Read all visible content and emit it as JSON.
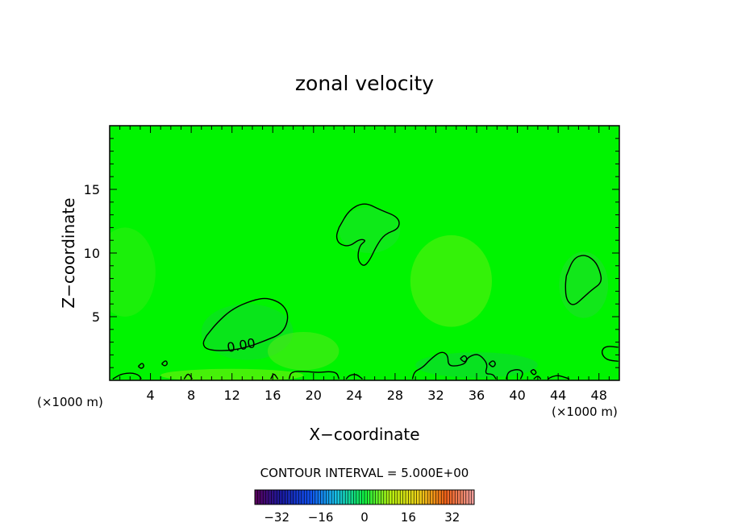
{
  "chart_data": {
    "type": "contour",
    "title": "zonal velocity",
    "xlabel": "X−coordinate",
    "ylabel": "Z−coordinate",
    "x_unit_left": "(×1000 m)",
    "x_unit_right": "(×1000 m)",
    "xlim": [
      0,
      50
    ],
    "ylim": [
      0,
      20
    ],
    "x_ticks": [
      4,
      8,
      12,
      16,
      20,
      24,
      28,
      32,
      36,
      40,
      44,
      48
    ],
    "x_tick_labels": [
      "4",
      "8",
      "12",
      "16",
      "20",
      "24",
      "28",
      "32",
      "36",
      "40",
      "44",
      "48"
    ],
    "y_ticks": [
      5,
      10,
      15
    ],
    "y_tick_labels": [
      "5",
      "10",
      "15"
    ],
    "contour_label": "0.00",
    "contour_interval_text": "CONTOUR INTERVAL = 5.000E+00",
    "colorbar": {
      "min": -40,
      "max": 40,
      "ticks": [
        -32,
        -16,
        0,
        16,
        32
      ],
      "tick_labels": [
        "−32",
        "−16",
        "0",
        "16",
        "32"
      ]
    },
    "field_color": "#00f400",
    "zero_contours": [
      [
        [
          9.5,
          3.5
        ],
        [
          10.5,
          4.5
        ],
        [
          12,
          5.6
        ],
        [
          14,
          6.3
        ],
        [
          15.5,
          6.5
        ],
        [
          17,
          6
        ],
        [
          17.6,
          5
        ],
        [
          17,
          3.7
        ],
        [
          15.2,
          3.1
        ],
        [
          13.5,
          2.6
        ],
        [
          11.5,
          2.3
        ],
        [
          9.5,
          2.4
        ],
        [
          9.1,
          2.9
        ],
        [
          9.5,
          3.5
        ]
      ],
      [
        [
          22.5,
          12
        ],
        [
          23.5,
          13.4
        ],
        [
          25,
          14
        ],
        [
          26.5,
          13.4
        ],
        [
          28.4,
          12.8
        ],
        [
          28.4,
          11.9
        ],
        [
          27,
          11.5
        ],
        [
          26.2,
          10.6
        ],
        [
          25.5,
          9.4
        ],
        [
          24.9,
          8.9
        ],
        [
          24.3,
          9.5
        ],
        [
          24.5,
          10.6
        ],
        [
          25.2,
          11
        ],
        [
          24.5,
          11.1
        ],
        [
          23.5,
          10.5
        ],
        [
          22.5,
          10.7
        ],
        [
          22.2,
          11.3
        ],
        [
          22.5,
          12
        ]
      ],
      [
        [
          44.8,
          8.2
        ],
        [
          45.5,
          9.6
        ],
        [
          46.6,
          9.9
        ],
        [
          47.6,
          9.4
        ],
        [
          48.1,
          8.6
        ],
        [
          48.3,
          7.7
        ],
        [
          47.3,
          7.1
        ],
        [
          46.6,
          6.6
        ],
        [
          45.5,
          5.8
        ],
        [
          44.8,
          6.3
        ],
        [
          44.7,
          7.4
        ],
        [
          44.8,
          8.2
        ]
      ],
      [
        [
          0.3,
          0.1
        ],
        [
          1.1,
          0.5
        ],
        [
          2.2,
          0.6
        ],
        [
          2.9,
          0.4
        ],
        [
          3.1,
          0.1
        ]
      ],
      [
        [
          7.3,
          0.1
        ],
        [
          7.7,
          0.6
        ],
        [
          8.1,
          0.1
        ]
      ],
      [
        [
          15.8,
          0.1
        ],
        [
          16.1,
          0.6
        ],
        [
          16.5,
          0.1
        ]
      ],
      [
        [
          17.6,
          0.1
        ],
        [
          17.8,
          0.7
        ],
        [
          19.2,
          0.7
        ],
        [
          20.5,
          0.6
        ],
        [
          21.5,
          0.7
        ],
        [
          22.3,
          0.6
        ],
        [
          22.5,
          0.1
        ]
      ],
      [
        [
          23.2,
          0.1
        ],
        [
          23.5,
          0.4
        ],
        [
          24.2,
          0.5
        ],
        [
          24.8,
          0.1
        ]
      ],
      [
        [
          29.7,
          0.1
        ],
        [
          29.9,
          0.7
        ],
        [
          30.7,
          1
        ],
        [
          31.4,
          1.6
        ],
        [
          32.5,
          2.3
        ],
        [
          33.2,
          2
        ],
        [
          33.2,
          1.2
        ],
        [
          33.9,
          1.1
        ],
        [
          34.9,
          1.3
        ],
        [
          35.1,
          1.8
        ],
        [
          36,
          2.1
        ],
        [
          36.6,
          1.8
        ],
        [
          37.1,
          1.2
        ],
        [
          36.8,
          0.5
        ],
        [
          37.6,
          0.5
        ],
        [
          37.9,
          0.1
        ]
      ],
      [
        [
          38.9,
          0.1
        ],
        [
          39.1,
          0.7
        ],
        [
          40.1,
          0.9
        ],
        [
          40.6,
          0.6
        ],
        [
          40.3,
          0.1
        ]
      ],
      [
        [
          41.6,
          0.1
        ],
        [
          42,
          0.4
        ],
        [
          42.3,
          0.1
        ]
      ],
      [
        [
          43,
          0.1
        ],
        [
          43.4,
          0.3
        ],
        [
          44,
          0.4
        ],
        [
          44.8,
          0.2
        ],
        [
          45.1,
          0.1
        ]
      ],
      [
        [
          49.9,
          2.6
        ],
        [
          48.6,
          2.7
        ],
        [
          48.2,
          2.2
        ],
        [
          48.7,
          1.6
        ],
        [
          49.9,
          1.5
        ]
      ]
    ],
    "small_loops": [
      [
        [
          2.8,
          1.1
        ],
        [
          3.2,
          1.4
        ],
        [
          3.4,
          1.1
        ],
        [
          3.1,
          0.9
        ],
        [
          2.8,
          1.1
        ]
      ],
      [
        [
          5.1,
          1.3
        ],
        [
          5.5,
          1.6
        ],
        [
          5.7,
          1.3
        ],
        [
          5.4,
          1.1
        ],
        [
          5.1,
          1.3
        ]
      ],
      [
        [
          34.4,
          1.7
        ],
        [
          34.8,
          2
        ],
        [
          35.1,
          1.7
        ],
        [
          34.8,
          1.4
        ],
        [
          34.4,
          1.7
        ]
      ],
      [
        [
          37.2,
          1.3
        ],
        [
          37.6,
          1.6
        ],
        [
          37.9,
          1.3
        ],
        [
          37.6,
          1
        ],
        [
          37.2,
          1.3
        ]
      ],
      [
        [
          41.3,
          0.7
        ],
        [
          41.6,
          0.9
        ],
        [
          41.9,
          0.6
        ],
        [
          41.6,
          0.4
        ],
        [
          41.3,
          0.7
        ]
      ]
    ],
    "anomalies": [
      {
        "x": 13.5,
        "z": 3.8,
        "rx": 4.5,
        "ry": 2.2,
        "color": "#10d830",
        "opacity": 0.55
      },
      {
        "x": 19,
        "z": 2.3,
        "rx": 3.5,
        "ry": 1.5,
        "color": "#58ea1c",
        "opacity": 0.55
      },
      {
        "x": 33.5,
        "z": 7.8,
        "rx": 4,
        "ry": 3.6,
        "color": "#5ef010",
        "opacity": 0.55
      },
      {
        "x": 46.5,
        "z": 7.5,
        "rx": 2.4,
        "ry": 2.6,
        "color": "#20dd30",
        "opacity": 0.55
      },
      {
        "x": 25.5,
        "z": 11.8,
        "rx": 3,
        "ry": 1.8,
        "color": "#1be030",
        "opacity": 0.5
      },
      {
        "x": 1.5,
        "z": 8.5,
        "rx": 3,
        "ry": 3.5,
        "color": "#44ec18",
        "opacity": 0.4
      },
      {
        "x": 36,
        "z": 1.2,
        "rx": 6,
        "ry": 1,
        "color": "#10d040",
        "opacity": 0.5
      },
      {
        "x": 12,
        "z": 0.4,
        "rx": 7,
        "ry": 0.5,
        "color": "#80ee10",
        "opacity": 0.55
      }
    ]
  }
}
